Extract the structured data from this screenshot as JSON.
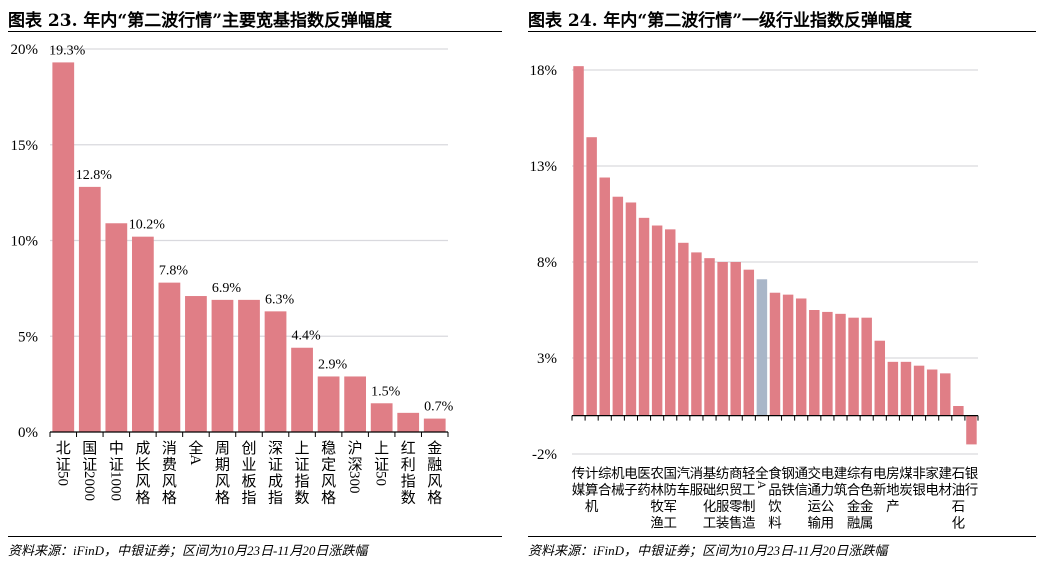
{
  "colors": {
    "bar": "#E07E86",
    "highlight": "#A9B6C8",
    "grid": "#D9D9DE",
    "axis": "#000000"
  },
  "chart_data": [
    {
      "type": "bar",
      "title": "图表 23. 年内“第二波行情”主要宽基指数反弹幅度",
      "xlabel": "",
      "ylabel": "",
      "ylim": [
        0,
        20
      ],
      "yticks": [
        0,
        5,
        10,
        15,
        20
      ],
      "ytick_labels": [
        "0%",
        "5%",
        "10%",
        "15%",
        "20%"
      ],
      "grid": true,
      "categories": [
        "北证50",
        "国证2000",
        "中证1000",
        "成长风格",
        "消费风格",
        "全A",
        "周期风格",
        "创业板指",
        "深证成指",
        "上证指数",
        "稳定风格",
        "沪深300",
        "上证50",
        "红利指数",
        "金融风格"
      ],
      "values": [
        19.3,
        12.8,
        10.9,
        10.2,
        7.8,
        7.1,
        6.9,
        6.9,
        6.3,
        4.4,
        2.9,
        2.9,
        1.5,
        1.0,
        0.7
      ],
      "data_labels": [
        "19.3%",
        "12.8%",
        "",
        "10.2%",
        "7.8%",
        "",
        "6.9%",
        "",
        "6.3%",
        "4.4%",
        "2.9%",
        "",
        "1.5%",
        "",
        "0.7%"
      ],
      "source": "资料来源：iFinD，中银证券；区间为10月23日-11月20日涨跌幅"
    },
    {
      "type": "bar",
      "title": "图表 24. 年内“第二波行情”一级行业指数反弹幅度",
      "xlabel": "",
      "ylabel": "",
      "ylim": [
        -2,
        18
      ],
      "yticks": [
        -2,
        3,
        8,
        13,
        18
      ],
      "ytick_labels": [
        "-2%",
        "3%",
        "8%",
        "13%",
        "18%"
      ],
      "grid": true,
      "highlight_category": "全A",
      "categories": [
        "传媒",
        "计算机",
        "综合",
        "机械",
        "电子",
        "医药",
        "农林牧渔",
        "国防军工",
        "汽车",
        "消服",
        "基础化工",
        "纺织服装",
        "商贸零售",
        "轻工制造",
        "全A",
        "食品饮料",
        "钢铁",
        "通信",
        "交通运输",
        "电力公用",
        "建筑",
        "综合金融",
        "有色金属",
        "电新",
        "房地产",
        "煤炭",
        "非银",
        "家电",
        "建材",
        "石油石化",
        "银行"
      ],
      "values": [
        18.2,
        14.5,
        12.4,
        11.4,
        11.1,
        10.3,
        9.9,
        9.7,
        9.0,
        8.5,
        8.2,
        8.0,
        8.0,
        7.6,
        7.1,
        6.4,
        6.3,
        6.1,
        5.5,
        5.4,
        5.3,
        5.1,
        5.1,
        3.9,
        2.8,
        2.8,
        2.6,
        2.4,
        2.2,
        0.5,
        -1.5
      ],
      "source": "资料来源：iFinD，中银证券；区间为10月23日-11月20日涨跌幅"
    }
  ]
}
